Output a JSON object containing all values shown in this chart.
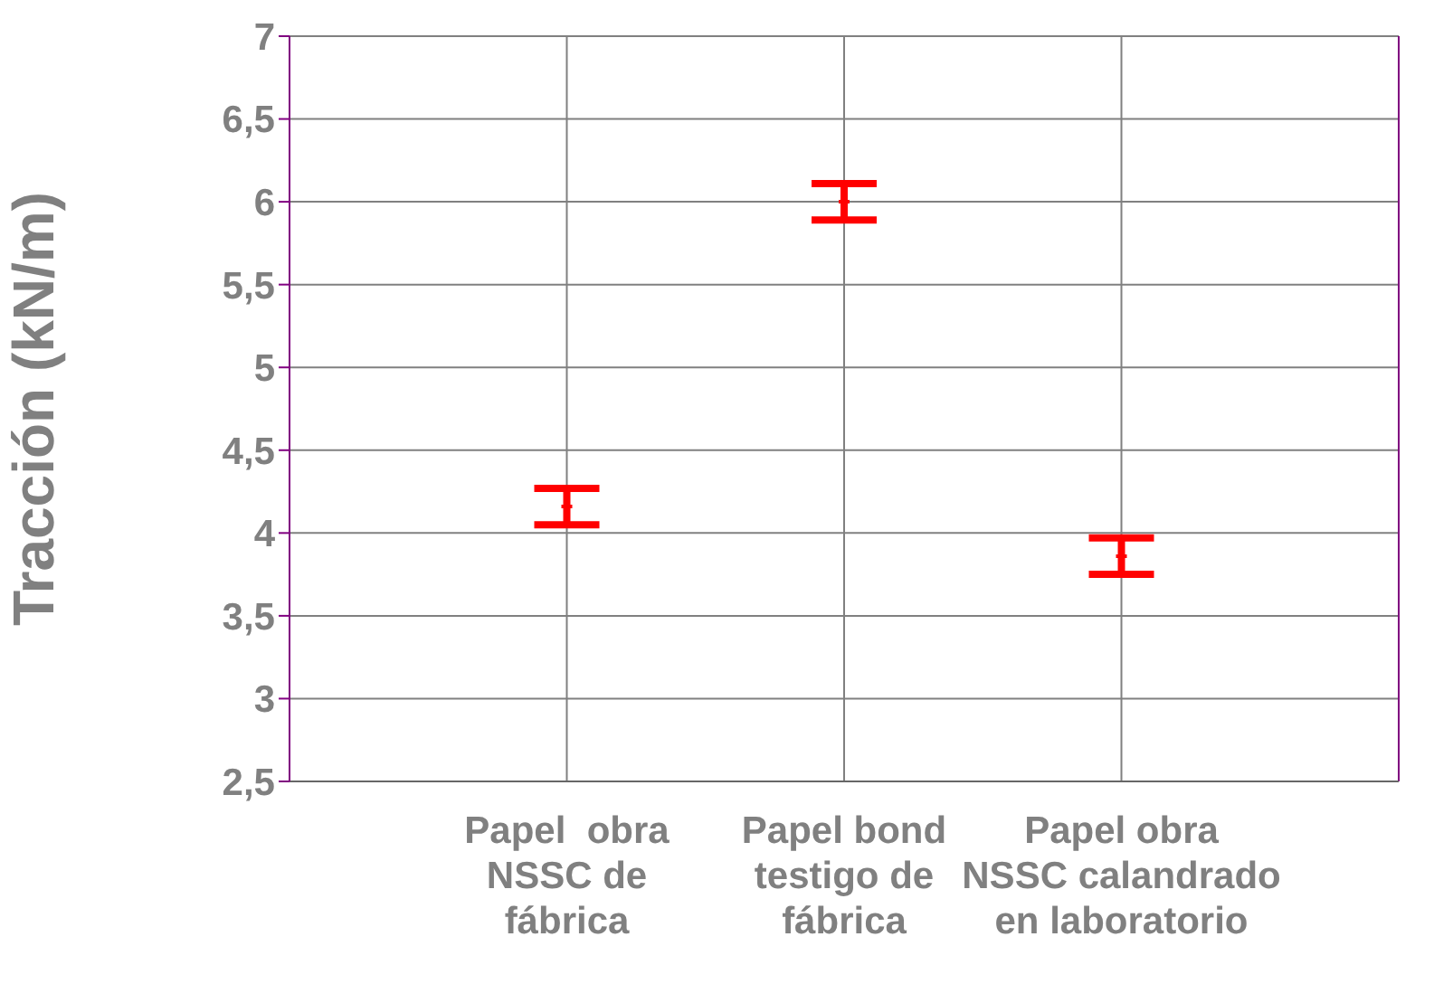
{
  "chart_data": {
    "type": "scatter",
    "ylabel": "Tracción (kN/m)",
    "categories": [
      "Papel  obra\nNSSC de\nfábrica",
      "Papel bond\ntestigo de\nfábrica",
      "Papel obra\nNSSC calandrado\nen laboratorio"
    ],
    "series": [
      {
        "color": "#ff0000",
        "values": [
          4.16,
          6.0,
          3.86
        ],
        "errors": [
          0.11,
          0.11,
          0.11
        ]
      }
    ],
    "ylim": [
      2.5,
      7
    ],
    "yticks": [
      {
        "value": 2.5,
        "label": "2,5"
      },
      3,
      {
        "value": 3.5,
        "label": "3,5"
      },
      4,
      {
        "value": 4.5,
        "label": "4,5"
      },
      5,
      {
        "value": 5.5,
        "label": "5,5"
      },
      6,
      {
        "value": 6.5,
        "label": "6,5"
      },
      7
    ],
    "grid": true,
    "marker": "cross"
  }
}
